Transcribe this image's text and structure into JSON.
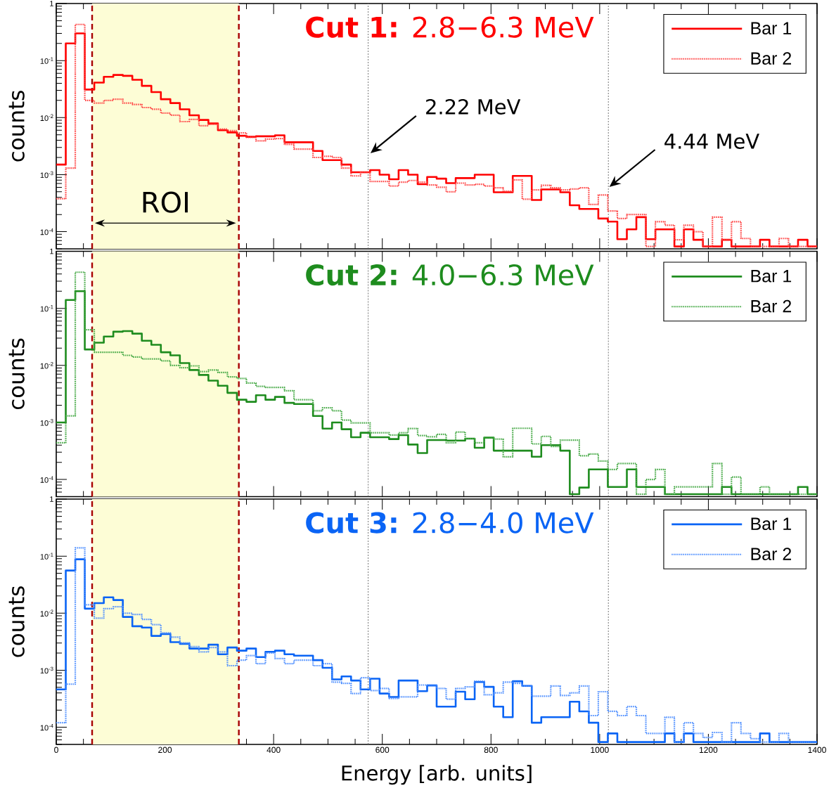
{
  "chart_data": [
    {
      "type": "histogram",
      "title": "**Cut 1:** 2.8−6.3 MeV",
      "ylabel": "counts",
      "log": true,
      "legend": "top right",
      "tick_labels": "y",
      "xlim": [
        0,
        1400
      ],
      "xticks": [
        0,
        200,
        400,
        600,
        800,
        1000,
        1200,
        1400
      ],
      "ylim": [
        5e-05,
        1
      ],
      "yticks": [
        1,
        {
          "value": 0.1,
          "label": "10$^{-1}$"
        },
        {
          "value": 0.01,
          "label": "10$^{-2}$"
        },
        {
          "value": 0.001,
          "label": "10$^{-3}$"
        },
        {
          "value": 0.0001,
          "label": "10$^{-4}$"
        }
      ],
      "bins": [
        0,
        17.5,
        35,
        52.5,
        70,
        87.5,
        105,
        122.5,
        140,
        157.5,
        175,
        192.5,
        210,
        227.5,
        245,
        262.5,
        280,
        297.5,
        315,
        332.5,
        350,
        367.5,
        385,
        402.5,
        420,
        437.5,
        455,
        472.5,
        490,
        507.5,
        525,
        542.5,
        560,
        577.5,
        595,
        612.5,
        630,
        647.5,
        665,
        682.5,
        700,
        717.5,
        735,
        752.5,
        770,
        787.5,
        805,
        822.5,
        840,
        857.5,
        875,
        892.5,
        910,
        927.5,
        945,
        962.5,
        980,
        997.5,
        1015,
        1032.5,
        1050,
        1067.5,
        1085,
        1102.5,
        1120,
        1137.5,
        1155,
        1172.5,
        1190,
        1207.5,
        1225,
        1242.5,
        1260,
        1277.5,
        1295,
        1312.5,
        1330,
        1347.5,
        1365,
        1382.5,
        1400
      ],
      "series": [
        {
          "name": "Bar 1",
          "color": "#ff0000",
          "line_style": "solid",
          "values": [
            0.0015,
            0.2,
            0.3,
            0.031,
            0.041,
            0.052,
            0.056,
            0.054,
            0.046,
            0.036,
            0.028,
            0.021,
            0.018,
            0.014,
            0.011,
            0.0091,
            0.0079,
            0.006,
            0.0055,
            0.0048,
            0.0046,
            0.0047,
            0.0047,
            0.0049,
            0.0037,
            0.0037,
            0.0037,
            0.0026,
            0.0018,
            0.0018,
            0.0015,
            0.0011,
            0.0011,
            0.0012,
            0.001,
            0.00083,
            0.0012,
            0.001,
            0.00068,
            0.00091,
            0.00085,
            0.00071,
            0.00087,
            0.00087,
            0.001,
            0.001,
            0.00049,
            0.00049,
            0.00095,
            0.00095,
            0.00036,
            0.00055,
            0.00055,
            0.00049,
            0.00029,
            0.00025,
            0.00025,
            0.00017,
            0.00015,
            7.4e-05,
            0.00011,
            0.00018,
            7.4e-05,
            0.00011,
            0.00011,
            5.5e-05,
            0.00011,
            7.2e-05,
            5.5e-05,
            5.5e-05,
            7.2e-05,
            5.5e-05,
            5.5e-05,
            5.5e-05,
            7.2e-05,
            5.5e-05,
            5.5e-05,
            5.5e-05,
            7.2e-05,
            5.5e-05
          ]
        },
        {
          "name": "Bar 2",
          "color": "#ff4040",
          "line_style": "dotted",
          "values": [
            0.00038,
            0.0013,
            0.43,
            0.02,
            0.018,
            0.02,
            0.021,
            0.018,
            0.017,
            0.015,
            0.014,
            0.012,
            0.011,
            0.0085,
            0.0093,
            0.0072,
            0.0076,
            0.0063,
            0.0059,
            0.0054,
            0.0045,
            0.0039,
            0.0042,
            0.0043,
            0.0034,
            0.0028,
            0.0028,
            0.002,
            0.0021,
            0.002,
            0.0013,
            0.00095,
            0.0011,
            0.00076,
            0.00076,
            0.00063,
            0.00074,
            0.00079,
            0.00074,
            0.00066,
            0.0006,
            0.0005,
            0.00071,
            0.00066,
            0.00068,
            0.00063,
            0.00059,
            0.00051,
            0.00081,
            0.00037,
            0.00054,
            0.00065,
            0.00059,
            0.00054,
            0.00056,
            0.00059,
            0.0003,
            0.00044,
            0.00023,
            0.00017,
            0.0002,
            0.0002,
            5.5e-05,
            0.00015,
            0.00013,
            7.2e-05,
            0.00013,
            0.0001,
            5.5e-05,
            0.00018,
            7.2e-05,
            0.00015,
            7.6e-05,
            5.5e-05,
            5.5e-05,
            5.5e-05,
            7.6e-05,
            5.5e-05,
            5.5e-05,
            5.5e-05
          ]
        }
      ],
      "bands": [
        {
          "axis": "x",
          "from": 66,
          "to": 336,
          "color": "#fdfdd6",
          "label": "ROI"
        }
      ],
      "ref_lines": [
        {
          "axis": "x",
          "value": 66,
          "color": "#a80000",
          "line_style": "dashed"
        },
        {
          "axis": "x",
          "value": 336,
          "color": "#a80000",
          "line_style": "dashed"
        },
        {
          "axis": "x",
          "value": 574,
          "color": "#666666",
          "line_style": "dotted"
        },
        {
          "axis": "x",
          "value": 1016,
          "color": "#666666",
          "line_style": "dotted"
        }
      ],
      "annotations": [
        "2.22 MeV",
        "4.44 MeV"
      ]
    },
    {
      "type": "histogram",
      "title": "**Cut 2:** 4.0−6.3 MeV",
      "ylabel": "counts",
      "log": true,
      "legend": "top right",
      "tick_labels": "y",
      "xlim": [
        0,
        1400
      ],
      "xticks": [
        0,
        200,
        400,
        600,
        800,
        1000,
        1200,
        1400
      ],
      "ylim": [
        5e-05,
        1
      ],
      "yticks": [
        1,
        {
          "value": 0.1,
          "label": "10$^{-1}$"
        },
        {
          "value": 0.01,
          "label": "10$^{-2}$"
        },
        {
          "value": 0.001,
          "label": "10$^{-3}$"
        },
        {
          "value": 0.0001,
          "label": "10$^{-4}$"
        }
      ],
      "bins": [
        0,
        17.5,
        35,
        52.5,
        70,
        87.5,
        105,
        122.5,
        140,
        157.5,
        175,
        192.5,
        210,
        227.5,
        245,
        262.5,
        280,
        297.5,
        315,
        332.5,
        350,
        367.5,
        385,
        402.5,
        420,
        437.5,
        455,
        472.5,
        490,
        507.5,
        525,
        542.5,
        560,
        577.5,
        595,
        612.5,
        630,
        647.5,
        665,
        682.5,
        700,
        717.5,
        735,
        752.5,
        770,
        787.5,
        805,
        822.5,
        840,
        857.5,
        875,
        892.5,
        910,
        927.5,
        945,
        962.5,
        980,
        997.5,
        1015,
        1032.5,
        1050,
        1067.5,
        1085,
        1102.5,
        1120,
        1137.5,
        1155,
        1172.5,
        1190,
        1207.5,
        1225,
        1242.5,
        1260,
        1277.5,
        1295,
        1312.5,
        1330,
        1347.5,
        1365,
        1382.5,
        1400
      ],
      "series": [
        {
          "name": "Bar 1",
          "color": "#1e8c1e",
          "line_style": "solid",
          "values": [
            0.001,
            0.14,
            0.2,
            0.019,
            0.025,
            0.032,
            0.039,
            0.04,
            0.036,
            0.027,
            0.023,
            0.017,
            0.015,
            0.011,
            0.0083,
            0.0068,
            0.0054,
            0.0044,
            0.0033,
            0.0025,
            0.0023,
            0.003,
            0.0025,
            0.0028,
            0.0022,
            0.0021,
            0.0021,
            0.0013,
            0.00078,
            0.001,
            0.00076,
            0.00055,
            0.00066,
            0.00055,
            0.00055,
            0.00051,
            0.0006,
            0.00041,
            0.00029,
            0.00049,
            0.00049,
            0.00048,
            0.00048,
            0.00052,
            0.00036,
            0.00054,
            0.00032,
            0.00032,
            0.00032,
            0.00032,
            0.00025,
            0.0004,
            0.0004,
            0.00032,
            5.5e-05,
            7.2e-05,
            0.00015,
            0.00015,
            7.4e-05,
            7.4e-05,
            0.00015,
            7.4e-05,
            7.4e-05,
            7.4e-05,
            5.5e-05,
            5.5e-05,
            5.5e-05,
            5.5e-05,
            5.5e-05,
            5.5e-05,
            7.4e-05,
            5.5e-05,
            5.5e-05,
            5.5e-05,
            5.5e-05,
            5.5e-05,
            5.5e-05,
            5.5e-05,
            7.4e-05,
            5.5e-05
          ]
        },
        {
          "name": "Bar 2",
          "color": "#40a640",
          "line_style": "dotted",
          "values": [
            0.00044,
            0.0013,
            0.43,
            0.042,
            0.017,
            0.017,
            0.017,
            0.015,
            0.014,
            0.013,
            0.013,
            0.012,
            0.01,
            0.0091,
            0.0098,
            0.0078,
            0.0083,
            0.0075,
            0.0063,
            0.0059,
            0.0049,
            0.0043,
            0.0041,
            0.0041,
            0.0036,
            0.0025,
            0.0025,
            0.0016,
            0.0018,
            0.0016,
            0.0011,
            0.00098,
            0.00098,
            0.00066,
            0.00066,
            0.0006,
            0.00066,
            0.00078,
            0.00059,
            0.00056,
            0.00062,
            0.00044,
            0.00068,
            0.00052,
            0.00044,
            0.00054,
            0.00051,
            0.00025,
            0.00079,
            0.00079,
            0.00042,
            0.00057,
            0.00038,
            0.00049,
            0.00049,
            0.00026,
            0.00028,
            0.00021,
            0.00015,
            0.00019,
            0.00019,
            5.5e-05,
            0.0001,
            0.00015,
            5.5e-05,
            7.4e-05,
            7.4e-05,
            7.4e-05,
            7.4e-05,
            0.00019,
            5.5e-05,
            0.00011,
            5.5e-05,
            5.5e-05,
            7.4e-05,
            5.5e-05,
            5.5e-05,
            5.5e-05,
            5.5e-05,
            5.5e-05
          ]
        }
      ],
      "bands": [
        {
          "axis": "x",
          "from": 66,
          "to": 336,
          "color": "#fdfdd6"
        }
      ],
      "ref_lines": [
        {
          "axis": "x",
          "value": 66,
          "color": "#a80000",
          "line_style": "dashed"
        },
        {
          "axis": "x",
          "value": 336,
          "color": "#a80000",
          "line_style": "dashed"
        },
        {
          "axis": "x",
          "value": 574,
          "color": "#666666",
          "line_style": "dotted"
        },
        {
          "axis": "x",
          "value": 1016,
          "color": "#666666",
          "line_style": "dotted"
        }
      ]
    },
    {
      "type": "histogram",
      "title": "**Cut 3:** 2.8−4.0 MeV",
      "ylabel": "counts",
      "xlabel": "Energy [arb. units]",
      "log": true,
      "legend": "top right",
      "xlim": [
        0,
        1400
      ],
      "xticks": [
        0,
        200,
        400,
        600,
        800,
        1000,
        1200,
        1400
      ],
      "ylim": [
        5e-05,
        1
      ],
      "yticks": [
        1,
        {
          "value": 0.1,
          "label": "10$^{-1}$"
        },
        {
          "value": 0.01,
          "label": "10$^{-2}$"
        },
        {
          "value": 0.001,
          "label": "10$^{-3}$"
        },
        {
          "value": 0.0001,
          "label": "10$^{-4}$"
        }
      ],
      "bins": [
        0,
        17.5,
        35,
        52.5,
        70,
        87.5,
        105,
        122.5,
        140,
        157.5,
        175,
        192.5,
        210,
        227.5,
        245,
        262.5,
        280,
        297.5,
        315,
        332.5,
        350,
        367.5,
        385,
        402.5,
        420,
        437.5,
        455,
        472.5,
        490,
        507.5,
        525,
        542.5,
        560,
        577.5,
        595,
        612.5,
        630,
        647.5,
        665,
        682.5,
        700,
        717.5,
        735,
        752.5,
        770,
        787.5,
        805,
        822.5,
        840,
        857.5,
        875,
        892.5,
        910,
        927.5,
        945,
        962.5,
        980,
        997.5,
        1015,
        1032.5,
        1050,
        1067.5,
        1085,
        1102.5,
        1120,
        1137.5,
        1155,
        1172.5,
        1190,
        1207.5,
        1225,
        1242.5,
        1260,
        1277.5,
        1295,
        1312.5,
        1330,
        1347.5,
        1365,
        1382.5,
        1400
      ],
      "series": [
        {
          "name": "Bar 1",
          "color": "#0a64f5",
          "line_style": "solid",
          "values": [
            0.00046,
            0.056,
            0.088,
            0.012,
            0.015,
            0.019,
            0.017,
            0.0086,
            0.0059,
            0.0056,
            0.004,
            0.0043,
            0.0031,
            0.0029,
            0.0024,
            0.0024,
            0.0028,
            0.0019,
            0.0025,
            0.0022,
            0.0024,
            0.0017,
            0.0021,
            0.0022,
            0.0019,
            0.0018,
            0.0018,
            0.0015,
            0.0011,
            0.00069,
            0.00078,
            0.00066,
            0.00046,
            0.00071,
            0.00039,
            0.00034,
            0.00066,
            0.00066,
            0.00043,
            0.00054,
            0.00023,
            0.00023,
            0.00042,
            0.00031,
            0.00062,
            0.00051,
            0.00023,
            0.00015,
            0.00064,
            0.00053,
            0.00012,
            0.00015,
            0.00015,
            0.00015,
            0.00028,
            0.00019,
            0.00012,
            5.5e-05,
            7.8e-05,
            5.5e-05,
            5.5e-05,
            5.5e-05,
            5.5e-05,
            5.5e-05,
            7.8e-05,
            5.5e-05,
            7.8e-05,
            5.5e-05,
            5.5e-05,
            5.5e-05,
            5.5e-05,
            5.5e-05,
            5.5e-05,
            5.5e-05,
            7.8e-05,
            5.5e-05,
            5.5e-05,
            5.5e-05,
            5.5e-05,
            5.5e-05
          ]
        },
        {
          "name": "Bar 2",
          "color": "#4a8cff",
          "line_style": "dotted",
          "values": [
            0.00012,
            0.00057,
            0.14,
            0.014,
            0.0082,
            0.012,
            0.013,
            0.01,
            0.0095,
            0.0078,
            0.0063,
            0.0045,
            0.0038,
            0.003,
            0.0026,
            0.0021,
            0.0025,
            0.0021,
            0.0012,
            0.0015,
            0.0018,
            0.0013,
            0.002,
            0.0016,
            0.0013,
            0.0015,
            0.0015,
            0.0012,
            0.0013,
            0.00062,
            0.00059,
            0.00039,
            0.00074,
            0.00044,
            0.00048,
            0.00032,
            0.00034,
            0.00034,
            0.00055,
            0.00055,
            0.00048,
            0.00031,
            0.00048,
            0.00051,
            0.00064,
            0.00037,
            0.0004,
            0.00062,
            0.00059,
            0.00053,
            0.00035,
            0.00035,
            0.00053,
            0.00036,
            0.0004,
            0.00053,
            0.00016,
            0.00042,
            0.00019,
            0.00016,
            0.00023,
            0.00016,
            7.8e-05,
            7.8e-05,
            0.00015,
            5.5e-05,
            0.00012,
            7.8e-05,
            6.6e-05,
            8.1e-05,
            5.5e-05,
            0.00012,
            7.8e-05,
            6.3e-05,
            5.5e-05,
            5.5e-05,
            7.8e-05,
            5.5e-05,
            5.5e-05,
            5.5e-05
          ]
        }
      ],
      "bands": [
        {
          "axis": "x",
          "from": 66,
          "to": 336,
          "color": "#fdfdd6"
        }
      ],
      "ref_lines": [
        {
          "axis": "x",
          "value": 66,
          "color": "#a80000",
          "line_style": "dashed"
        },
        {
          "axis": "x",
          "value": 336,
          "color": "#a80000",
          "line_style": "dashed"
        },
        {
          "axis": "x",
          "value": 574,
          "color": "#666666",
          "line_style": "dotted"
        },
        {
          "axis": "x",
          "value": 1016,
          "color": "#666666",
          "line_style": "dotted"
        }
      ]
    }
  ]
}
